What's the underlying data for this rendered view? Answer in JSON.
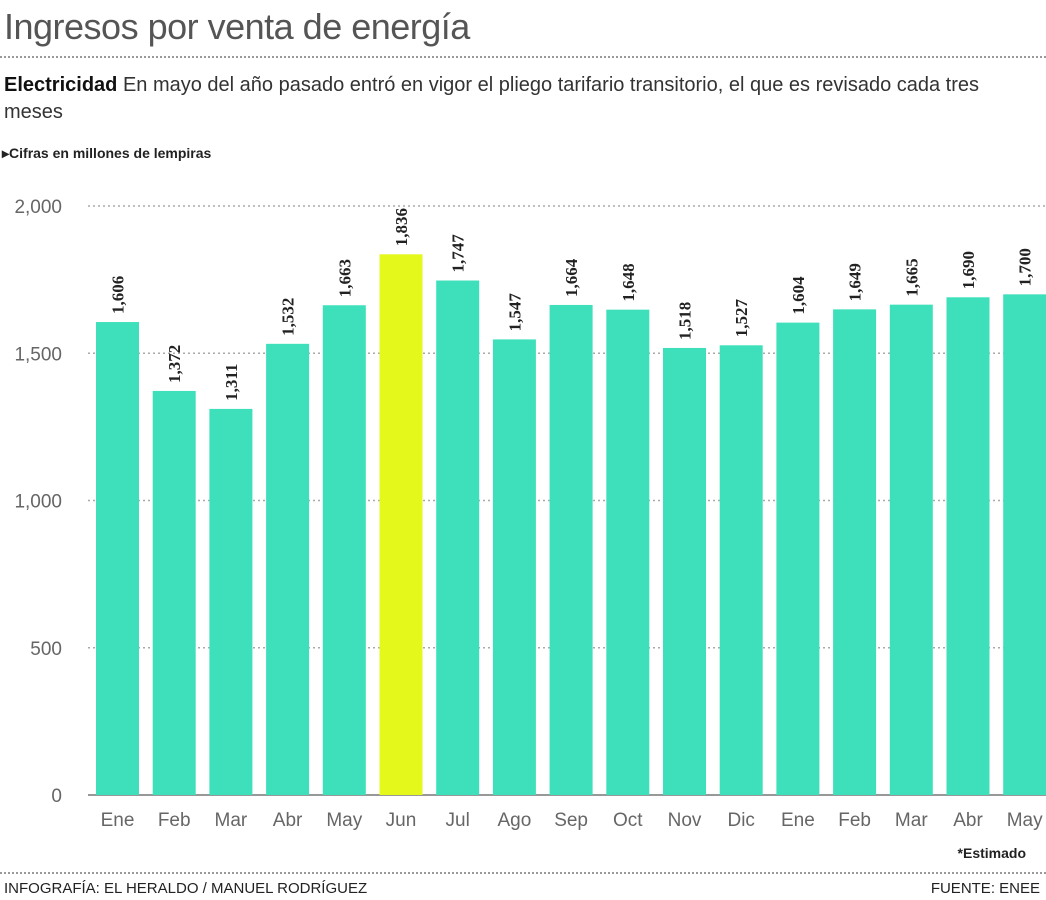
{
  "header": {
    "title": "Ingresos por venta de energía",
    "subtitle_bold": "Electricidad",
    "subtitle_text": "En mayo del año pasado entró en vigor el pliego tarifario transitorio, el que es revisado cada tres meses",
    "unit_note": "Cifras en millones de lempiras"
  },
  "footer": {
    "note": "*Estimado",
    "credit": "INFOGRAFÍA: EL HERALDO / MANUEL RODRÍGUEZ",
    "source": "FUENTE: ENEE"
  },
  "chart_data": {
    "type": "bar",
    "title": "Ingresos por venta de energía",
    "ylabel": "",
    "xlabel": "",
    "ylim": [
      0,
      2000
    ],
    "yticks": [
      0,
      500,
      1000,
      1500,
      2000
    ],
    "ytick_labels": [
      "0",
      "500",
      "1,000",
      "1,500",
      "2,000"
    ],
    "grid": true,
    "categories": [
      "Ene",
      "Feb",
      "Mar",
      "Abr",
      "May",
      "Jun",
      "Jul",
      "Ago",
      "Sep",
      "Oct",
      "Nov",
      "Dic",
      "Ene",
      "Feb",
      "Mar",
      "Abr",
      "May"
    ],
    "values": [
      1606,
      1372,
      1311,
      1532,
      1663,
      1836,
      1747,
      1547,
      1664,
      1648,
      1518,
      1527,
      1604,
      1649,
      1665,
      1690,
      1700
    ],
    "data_labels": [
      "1,606",
      "1,372",
      "1,311",
      "1,532",
      "1,663",
      "1,836",
      "1,747",
      "1,547",
      "1,664",
      "1,648",
      "1,518",
      "1,527",
      "1,604",
      "1,649",
      "1,665",
      "1,690",
      "1,700"
    ],
    "highlight_index": 5,
    "colors": {
      "bar": "#3ee0bb",
      "highlight": "#e4f81c",
      "grid": "#aaaaaa"
    }
  }
}
